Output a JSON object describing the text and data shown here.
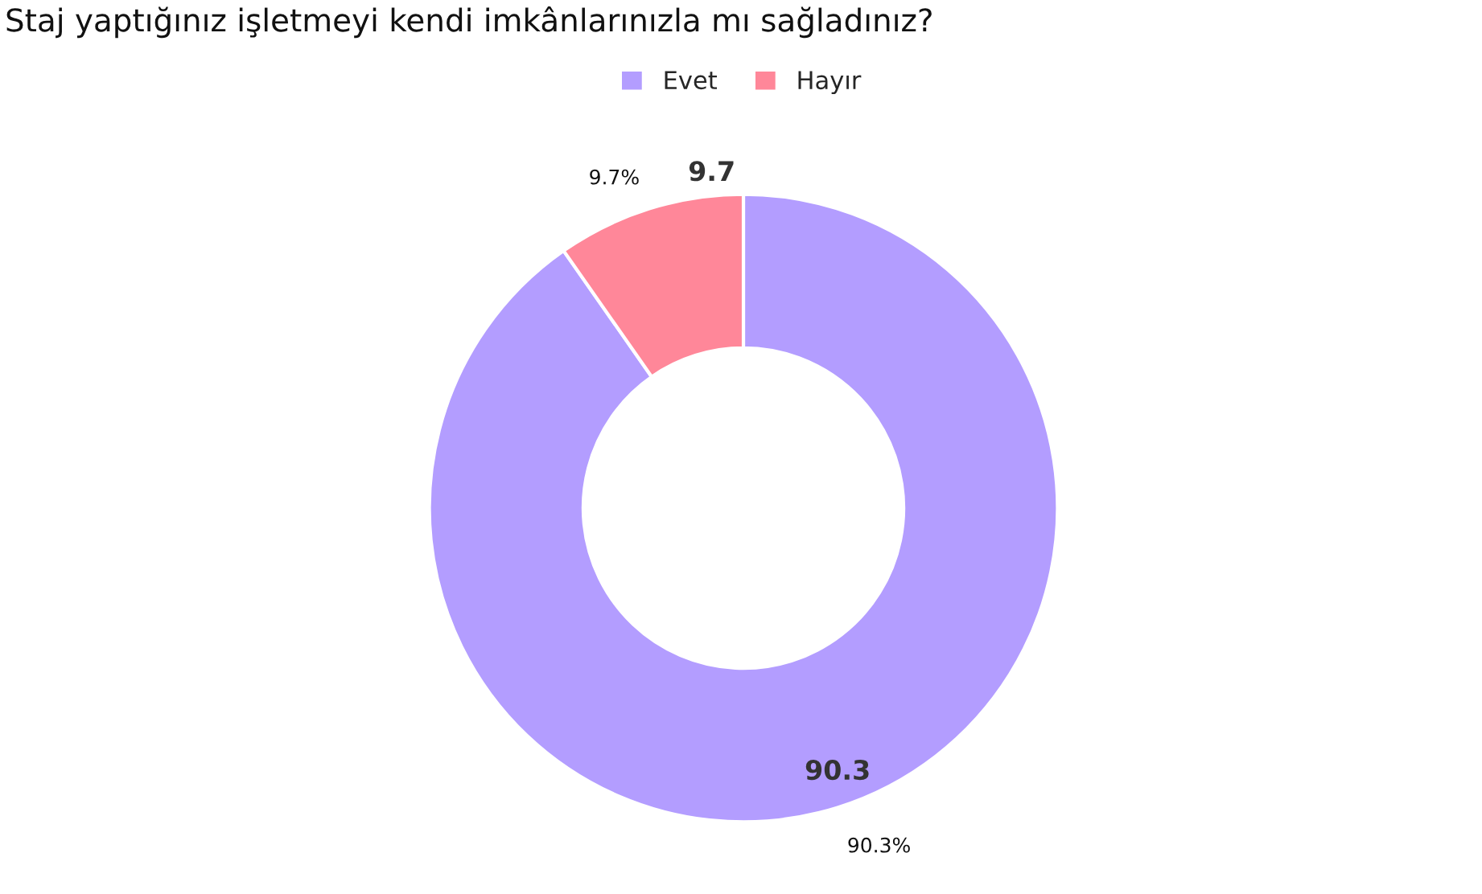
{
  "chart_data": {
    "type": "donut",
    "title": "Staj yaptığınız işletmeyi kendi imkânlarınızla mı sağladınız?",
    "categories": [
      "Evet",
      "Hayır"
    ],
    "values": [
      90.3,
      9.7
    ],
    "colors": [
      "#b39dff",
      "#ff8799"
    ],
    "value_labels": [
      "90.3%",
      "9.7%"
    ],
    "annotations": [
      "90.3",
      "9.7"
    ],
    "legend": "top"
  }
}
